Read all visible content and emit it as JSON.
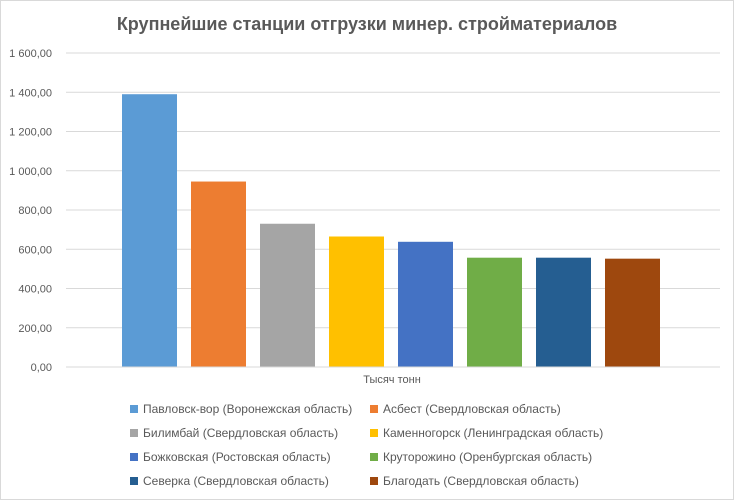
{
  "chart_data": {
    "type": "bar",
    "title": "Крупнейшие станции отгрузки минер. стройматериалов",
    "xlabel": "Тысяч тонн",
    "ylabel": "",
    "ylim": [
      0,
      1600
    ],
    "yticks": [
      "0,00",
      "200,00",
      "400,00",
      "600,00",
      "800,00",
      "1 000,00",
      "1 200,00",
      "1 400,00",
      "1 600,00"
    ],
    "grid": true,
    "legend_position": "bottom",
    "categories": [
      "Тысяч тонн"
    ],
    "series": [
      {
        "name": "Павловск-вор (Воронежская область)",
        "values": [
          1390
        ],
        "color": "#5b9bd5"
      },
      {
        "name": "Асбест (Свердловская область)",
        "values": [
          945
        ],
        "color": "#ed7d31"
      },
      {
        "name": "Билимбай (Свердловская область)",
        "values": [
          730
        ],
        "color": "#a5a5a5"
      },
      {
        "name": "Каменногорск (Ленинградская область)",
        "values": [
          665
        ],
        "color": "#ffc000"
      },
      {
        "name": "Божковская (Ростовская область)",
        "values": [
          638
        ],
        "color": "#4472c4"
      },
      {
        "name": "Круторожино (Оренбургская область)",
        "values": [
          557
        ],
        "color": "#70ad47"
      },
      {
        "name": "Северка (Свердловская область)",
        "values": [
          557
        ],
        "color": "#255e91"
      },
      {
        "name": "Благодать (Свердловская область)",
        "values": [
          552
        ],
        "color": "#9e480e"
      }
    ]
  }
}
